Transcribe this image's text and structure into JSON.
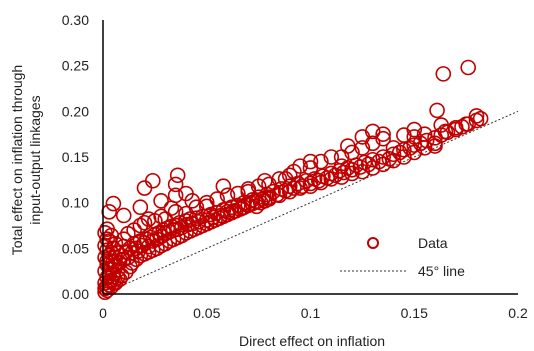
{
  "chart_data": {
    "type": "scatter",
    "title": "",
    "xlabel": "Direct effect on inflation",
    "ylabel_line1": "Total effect on inflation through",
    "ylabel_line2": "input-output linkages",
    "xlim": [
      0,
      0.2
    ],
    "ylim": [
      0,
      0.3
    ],
    "x_ticks": [
      "0",
      "0.05",
      "0.1",
      "0.15",
      "0.2"
    ],
    "y_ticks": [
      "0.00",
      "0.05",
      "0.10",
      "0.15",
      "0.20",
      "0.25",
      "0.30"
    ],
    "grid": false,
    "legend_position": "bottom-right",
    "marker_color": "#c00000",
    "reference_line": {
      "name": "45° line",
      "slope": 1,
      "style": "dotted",
      "color": "#333333"
    },
    "series": [
      {
        "name": "Data",
        "points": [
          [
            0.001,
            0.006
          ],
          [
            0.002,
            0.004
          ],
          [
            0.001,
            0.012
          ],
          [
            0.002,
            0.018
          ],
          [
            0.003,
            0.01
          ],
          [
            0.001,
            0.025
          ],
          [
            0.002,
            0.032
          ],
          [
            0.003,
            0.02
          ],
          [
            0.004,
            0.015
          ],
          [
            0.005,
            0.022
          ],
          [
            0.003,
            0.042
          ],
          [
            0.002,
            0.048
          ],
          [
            0.001,
            0.053
          ],
          [
            0.002,
            0.06
          ],
          [
            0.001,
            0.067
          ],
          [
            0.002,
            0.071
          ],
          [
            0.004,
            0.028
          ],
          [
            0.005,
            0.035
          ],
          [
            0.006,
            0.03
          ],
          [
            0.007,
            0.026
          ],
          [
            0.006,
            0.04
          ],
          [
            0.008,
            0.034
          ],
          [
            0.009,
            0.042
          ],
          [
            0.01,
            0.038
          ],
          [
            0.007,
            0.045
          ],
          [
            0.01,
            0.052
          ],
          [
            0.011,
            0.046
          ],
          [
            0.012,
            0.04
          ],
          [
            0.013,
            0.05
          ],
          [
            0.014,
            0.045
          ],
          [
            0.015,
            0.055
          ],
          [
            0.016,
            0.05
          ],
          [
            0.017,
            0.047
          ],
          [
            0.018,
            0.058
          ],
          [
            0.019,
            0.053
          ],
          [
            0.02,
            0.056
          ],
          [
            0.021,
            0.06
          ],
          [
            0.022,
            0.052
          ],
          [
            0.023,
            0.062
          ],
          [
            0.024,
            0.058
          ],
          [
            0.025,
            0.065
          ],
          [
            0.026,
            0.06
          ],
          [
            0.027,
            0.067
          ],
          [
            0.028,
            0.063
          ],
          [
            0.029,
            0.07
          ],
          [
            0.03,
            0.066
          ],
          [
            0.031,
            0.072
          ],
          [
            0.032,
            0.068
          ],
          [
            0.033,
            0.074
          ],
          [
            0.034,
            0.07
          ],
          [
            0.035,
            0.075
          ],
          [
            0.036,
            0.071
          ],
          [
            0.037,
            0.078
          ],
          [
            0.038,
            0.073
          ],
          [
            0.04,
            0.08
          ],
          [
            0.041,
            0.076
          ],
          [
            0.042,
            0.082
          ],
          [
            0.043,
            0.077
          ],
          [
            0.045,
            0.083
          ],
          [
            0.046,
            0.079
          ],
          [
            0.048,
            0.085
          ],
          [
            0.05,
            0.081
          ],
          [
            0.052,
            0.087
          ],
          [
            0.053,
            0.084
          ],
          [
            0.055,
            0.089
          ],
          [
            0.057,
            0.086
          ],
          [
            0.058,
            0.092
          ],
          [
            0.06,
            0.09
          ],
          [
            0.062,
            0.095
          ],
          [
            0.063,
            0.091
          ],
          [
            0.065,
            0.097
          ],
          [
            0.067,
            0.094
          ],
          [
            0.068,
            0.1
          ],
          [
            0.07,
            0.098
          ],
          [
            0.072,
            0.103
          ],
          [
            0.074,
            0.101
          ],
          [
            0.075,
            0.106
          ],
          [
            0.077,
            0.104
          ],
          [
            0.079,
            0.109
          ],
          [
            0.08,
            0.106
          ],
          [
            0.082,
            0.112
          ],
          [
            0.084,
            0.109
          ],
          [
            0.086,
            0.115
          ],
          [
            0.088,
            0.113
          ],
          [
            0.09,
            0.118
          ],
          [
            0.092,
            0.116
          ],
          [
            0.094,
            0.121
          ],
          [
            0.096,
            0.118
          ],
          [
            0.098,
            0.124
          ],
          [
            0.1,
            0.121
          ],
          [
            0.102,
            0.126
          ],
          [
            0.104,
            0.124
          ],
          [
            0.106,
            0.129
          ],
          [
            0.108,
            0.127
          ],
          [
            0.11,
            0.132
          ],
          [
            0.112,
            0.13
          ],
          [
            0.114,
            0.135
          ],
          [
            0.116,
            0.133
          ],
          [
            0.118,
            0.138
          ],
          [
            0.12,
            0.136
          ],
          [
            0.122,
            0.141
          ],
          [
            0.124,
            0.139
          ],
          [
            0.126,
            0.144
          ],
          [
            0.128,
            0.142
          ],
          [
            0.13,
            0.147
          ],
          [
            0.133,
            0.145
          ],
          [
            0.135,
            0.15
          ],
          [
            0.138,
            0.148
          ],
          [
            0.14,
            0.153
          ],
          [
            0.143,
            0.155
          ],
          [
            0.145,
            0.158
          ],
          [
            0.148,
            0.16
          ],
          [
            0.15,
            0.163
          ],
          [
            0.153,
            0.165
          ],
          [
            0.156,
            0.168
          ],
          [
            0.16,
            0.171
          ],
          [
            0.163,
            0.174
          ],
          [
            0.166,
            0.177
          ],
          [
            0.17,
            0.18
          ],
          [
            0.173,
            0.183
          ],
          [
            0.176,
            0.186
          ],
          [
            0.18,
            0.19
          ],
          [
            0.182,
            0.192
          ],
          [
            0.01,
            0.06
          ],
          [
            0.012,
            0.066
          ],
          [
            0.015,
            0.07
          ],
          [
            0.018,
            0.075
          ],
          [
            0.02,
            0.078
          ],
          [
            0.022,
            0.082
          ],
          [
            0.025,
            0.08
          ],
          [
            0.028,
            0.085
          ],
          [
            0.03,
            0.082
          ],
          [
            0.035,
            0.09
          ],
          [
            0.04,
            0.088
          ],
          [
            0.045,
            0.095
          ],
          [
            0.05,
            0.1
          ],
          [
            0.06,
            0.108
          ],
          [
            0.07,
            0.115
          ],
          [
            0.08,
            0.12
          ],
          [
            0.085,
            0.126
          ],
          [
            0.09,
            0.13
          ],
          [
            0.1,
            0.138
          ],
          [
            0.105,
            0.145
          ],
          [
            0.11,
            0.15
          ],
          [
            0.115,
            0.14
          ],
          [
            0.12,
            0.155
          ],
          [
            0.125,
            0.16
          ],
          [
            0.13,
            0.165
          ],
          [
            0.135,
            0.17
          ],
          [
            0.14,
            0.16
          ],
          [
            0.15,
            0.172
          ],
          [
            0.155,
            0.175
          ],
          [
            0.16,
            0.165
          ],
          [
            0.165,
            0.178
          ],
          [
            0.17,
            0.182
          ],
          [
            0.175,
            0.186
          ],
          [
            0.163,
            0.185
          ],
          [
            0.161,
            0.201
          ],
          [
            0.164,
            0.241
          ],
          [
            0.176,
            0.248
          ],
          [
            0.18,
            0.195
          ],
          [
            0.095,
            0.14
          ],
          [
            0.1,
            0.145
          ],
          [
            0.003,
            0.09
          ],
          [
            0.01,
            0.086
          ],
          [
            0.005,
            0.099
          ],
          [
            0.018,
            0.095
          ],
          [
            0.02,
            0.116
          ],
          [
            0.024,
            0.124
          ],
          [
            0.028,
            0.102
          ],
          [
            0.033,
            0.094
          ],
          [
            0.035,
            0.108
          ],
          [
            0.036,
            0.13
          ],
          [
            0.035,
            0.12
          ],
          [
            0.04,
            0.11
          ],
          [
            0.043,
            0.102
          ],
          [
            0.05,
            0.096
          ],
          [
            0.055,
            0.104
          ],
          [
            0.058,
            0.118
          ],
          [
            0.065,
            0.11
          ],
          [
            0.07,
            0.112
          ],
          [
            0.075,
            0.118
          ],
          [
            0.078,
            0.124
          ],
          [
            0.088,
            0.126
          ],
          [
            0.092,
            0.134
          ],
          [
            0.115,
            0.15
          ],
          [
            0.118,
            0.162
          ],
          [
            0.125,
            0.172
          ],
          [
            0.13,
            0.178
          ],
          [
            0.135,
            0.175
          ],
          [
            0.145,
            0.174
          ],
          [
            0.15,
            0.18
          ],
          [
            0.004,
            0.045
          ],
          [
            0.005,
            0.05
          ],
          [
            0.006,
            0.055
          ],
          [
            0.003,
            0.058
          ],
          [
            0.004,
            0.064
          ],
          [
            0.006,
            0.012
          ],
          [
            0.008,
            0.016
          ],
          [
            0.009,
            0.02
          ],
          [
            0.011,
            0.024
          ],
          [
            0.013,
            0.03
          ],
          [
            0.014,
            0.034
          ],
          [
            0.016,
            0.038
          ],
          [
            0.018,
            0.042
          ],
          [
            0.02,
            0.044
          ],
          [
            0.022,
            0.046
          ],
          [
            0.024,
            0.048
          ],
          [
            0.026,
            0.05
          ],
          [
            0.028,
            0.053
          ],
          [
            0.03,
            0.055
          ],
          [
            0.032,
            0.058
          ],
          [
            0.034,
            0.06
          ],
          [
            0.036,
            0.062
          ],
          [
            0.038,
            0.064
          ],
          [
            0.04,
            0.067
          ],
          [
            0.042,
            0.069
          ],
          [
            0.044,
            0.071
          ],
          [
            0.046,
            0.073
          ],
          [
            0.048,
            0.075
          ],
          [
            0.05,
            0.077
          ],
          [
            0.052,
            0.079
          ],
          [
            0.054,
            0.081
          ],
          [
            0.056,
            0.083
          ],
          [
            0.058,
            0.085
          ],
          [
            0.06,
            0.087
          ],
          [
            0.062,
            0.089
          ],
          [
            0.064,
            0.091
          ],
          [
            0.066,
            0.093
          ],
          [
            0.068,
            0.095
          ],
          [
            0.07,
            0.097
          ],
          [
            0.072,
            0.099
          ],
          [
            0.074,
            0.096
          ],
          [
            0.076,
            0.1
          ],
          [
            0.078,
            0.102
          ],
          [
            0.08,
            0.104
          ],
          [
            0.085,
            0.108
          ],
          [
            0.09,
            0.112
          ],
          [
            0.095,
            0.116
          ],
          [
            0.1,
            0.118
          ],
          [
            0.105,
            0.122
          ],
          [
            0.11,
            0.126
          ],
          [
            0.115,
            0.128
          ],
          [
            0.12,
            0.132
          ],
          [
            0.125,
            0.134
          ],
          [
            0.13,
            0.138
          ],
          [
            0.135,
            0.142
          ],
          [
            0.14,
            0.146
          ],
          [
            0.145,
            0.15
          ],
          [
            0.15,
            0.155
          ],
          [
            0.155,
            0.16
          ],
          [
            0.16,
            0.162
          ],
          [
            0.001,
            0.002
          ],
          [
            0.002,
            0.008
          ],
          [
            0.003,
            0.014
          ],
          [
            0.004,
            0.008
          ],
          [
            0.005,
            0.012
          ],
          [
            0.002,
            0.036
          ],
          [
            0.001,
            0.04
          ],
          [
            0.003,
            0.028
          ],
          [
            0.004,
            0.036
          ],
          [
            0.007,
            0.018
          ]
        ]
      }
    ]
  }
}
